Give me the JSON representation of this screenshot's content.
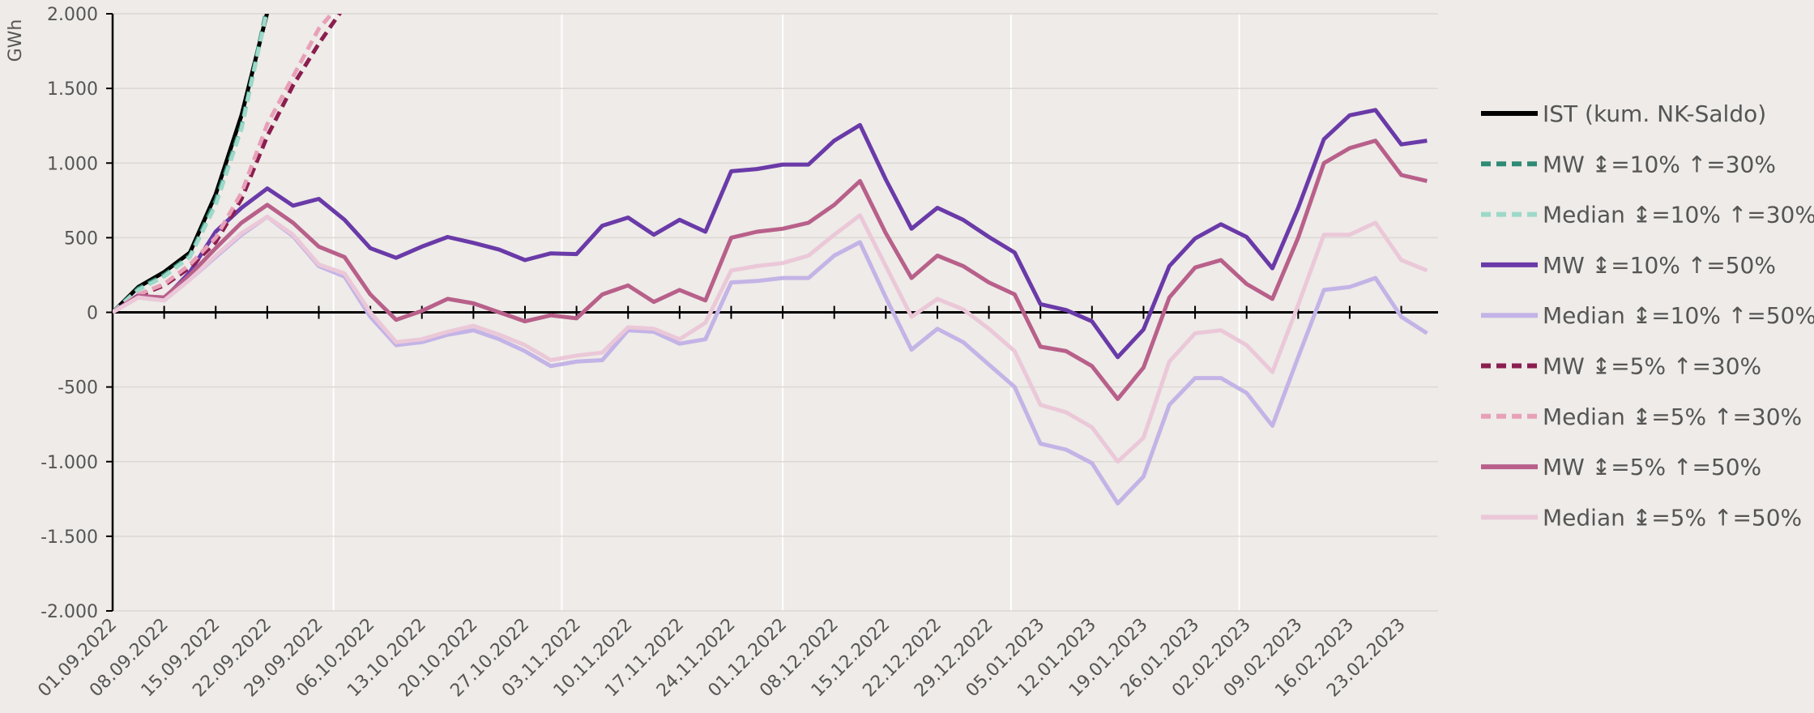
{
  "chart_data": {
    "type": "line",
    "y_label": "GWh",
    "categories": [
      "01.09.2022",
      null,
      "08.09.2022",
      null,
      "15.09.2022",
      null,
      "22.09.2022",
      null,
      "29.09.2022",
      null,
      "06.10.2022",
      null,
      "13.10.2022",
      null,
      "20.10.2022",
      null,
      "27.10.2022",
      null,
      "03.11.2022",
      null,
      "10.11.2022",
      null,
      "17.11.2022",
      null,
      "24.11.2022",
      null,
      "01.12.2022",
      null,
      "08.12.2022",
      null,
      "15.12.2022",
      null,
      "22.12.2022",
      null,
      "29.12.2022",
      null,
      "05.01.2023",
      null,
      "12.01.2023",
      null,
      "19.01.2023",
      null,
      "26.01.2023",
      null,
      "02.02.2023",
      null,
      "09.02.2023",
      null,
      "16.02.2023",
      null,
      "23.02.2023",
      null
    ],
    "ylim": [
      -2000,
      2000
    ],
    "yticks": [
      {
        "value": 2000,
        "label": "2.000"
      },
      {
        "value": 1500,
        "label": "1.500"
      },
      {
        "value": 1000,
        "label": "1.000"
      },
      500,
      0,
      -500,
      {
        "value": -1000,
        "label": "-1.000"
      },
      {
        "value": -1500,
        "label": "-1.500"
      },
      {
        "value": -2000,
        "label": "-2.000"
      }
    ],
    "grid": true,
    "legend": "right",
    "series": [
      {
        "name": "IST (kum. NK-Saldo)",
        "color": "#000000",
        "dashed": false,
        "values": [
          0,
          170,
          270,
          400,
          790,
          1320,
          2010,
          null,
          null,
          null,
          null,
          null,
          null,
          null,
          null,
          null,
          null,
          null,
          null,
          null,
          null,
          null,
          null,
          null,
          null,
          null,
          null,
          null,
          null,
          null,
          null,
          null,
          null,
          null,
          null,
          null,
          null,
          null,
          null,
          null,
          null,
          null,
          null,
          null,
          null,
          null,
          null,
          null,
          null,
          null,
          null,
          null
        ]
      },
      {
        "name": "MW ↨=10% ↑=30%",
        "color": "#2e8b74",
        "dashed": true,
        "values": [
          0,
          160,
          250,
          380,
          750,
          1250,
          2050,
          null,
          null,
          null,
          null,
          null,
          null,
          null,
          null,
          null,
          null,
          null,
          null,
          null,
          null,
          null,
          null,
          null,
          null,
          null,
          null,
          null,
          null,
          null,
          null,
          null,
          null,
          null,
          null,
          null,
          null,
          null,
          null,
          null,
          null,
          null,
          null,
          null,
          null,
          null,
          null,
          null,
          null,
          null,
          null,
          null
        ]
      },
      {
        "name": "Median ↨=10% ↑=30%",
        "color": "#9ed8c8",
        "dashed": true,
        "values": [
          0,
          150,
          240,
          370,
          720,
          1230,
          2030,
          null,
          null,
          null,
          null,
          null,
          null,
          null,
          null,
          null,
          null,
          null,
          null,
          null,
          null,
          null,
          null,
          null,
          null,
          null,
          null,
          null,
          null,
          null,
          null,
          null,
          null,
          null,
          null,
          null,
          null,
          null,
          null,
          null,
          null,
          null,
          null,
          null,
          null,
          null,
          null,
          null,
          null,
          null,
          null,
          null
        ]
      },
      {
        "name": "MW ↨=10% ↑=50%",
        "color": "#6a3aa8",
        "dashed": false,
        "values": [
          0,
          115,
          90,
          270,
          540,
          700,
          830,
          715,
          760,
          620,
          430,
          365,
          440,
          505,
          465,
          420,
          350,
          395,
          390,
          580,
          635,
          520,
          620,
          540,
          945,
          960,
          990,
          990,
          1150,
          1255,
          890,
          560,
          700,
          620,
          505,
          400,
          55,
          15,
          -60,
          -300,
          -115,
          310,
          495,
          590,
          505,
          295,
          700,
          1160,
          1320,
          1355,
          1125,
          1150
        ]
      },
      {
        "name": "Median ↨=10% ↑=50%",
        "color": "#c3b3e6",
        "dashed": false,
        "values": [
          0,
          100,
          80,
          220,
          370,
          520,
          640,
          510,
          310,
          240,
          -30,
          -220,
          -200,
          -150,
          -120,
          -180,
          -260,
          -360,
          -330,
          -320,
          -120,
          -130,
          -210,
          -180,
          200,
          210,
          230,
          230,
          380,
          470,
          100,
          -250,
          -110,
          -200,
          -350,
          -500,
          -880,
          -920,
          -1010,
          -1280,
          -1100,
          -620,
          -440,
          -440,
          -540,
          -760,
          -300,
          150,
          170,
          230,
          -30,
          -140
        ]
      },
      {
        "name": "MW ↨=5% ↑=30%",
        "color": "#8b1e4f",
        "dashed": true,
        "values": [
          0,
          110,
          180,
          300,
          470,
          760,
          1180,
          1520,
          1800,
          2050,
          null,
          null,
          null,
          null,
          null,
          null,
          null,
          null,
          null,
          null,
          null,
          null,
          null,
          null,
          null,
          null,
          null,
          null,
          null,
          null,
          null,
          null,
          null,
          null,
          null,
          null,
          null,
          null,
          null,
          null,
          null,
          null,
          null,
          null,
          null,
          null,
          null,
          null,
          null,
          null,
          null,
          null
        ]
      },
      {
        "name": "Median ↨=5% ↑=30%",
        "color": "#e8a0b8",
        "dashed": true,
        "values": [
          0,
          120,
          190,
          320,
          500,
          800,
          1260,
          1580,
          1900,
          2100,
          null,
          null,
          null,
          null,
          null,
          null,
          null,
          null,
          null,
          null,
          null,
          null,
          null,
          null,
          null,
          null,
          null,
          null,
          null,
          null,
          null,
          null,
          null,
          null,
          null,
          null,
          null,
          null,
          null,
          null,
          null,
          null,
          null,
          null,
          null,
          null,
          null,
          null,
          null,
          null,
          null,
          null
        ]
      },
      {
        "name": "MW ↨=5% ↑=50%",
        "color": "#b8608a",
        "dashed": false,
        "values": [
          0,
          110,
          100,
          250,
          430,
          600,
          720,
          600,
          440,
          370,
          120,
          -50,
          10,
          90,
          60,
          0,
          -60,
          -20,
          -40,
          120,
          180,
          70,
          150,
          80,
          500,
          540,
          560,
          600,
          720,
          880,
          530,
          230,
          380,
          310,
          200,
          120,
          -230,
          -260,
          -360,
          -580,
          -370,
          100,
          300,
          350,
          190,
          90,
          500,
          1000,
          1100,
          1150,
          920,
          880
        ]
      },
      {
        "name": "Median ↨=5% ↑=50%",
        "color": "#ebc8d8",
        "dashed": false,
        "values": [
          0,
          100,
          80,
          220,
          380,
          530,
          640,
          520,
          320,
          260,
          0,
          -200,
          -180,
          -130,
          -90,
          -150,
          -220,
          -320,
          -290,
          -270,
          -100,
          -110,
          -180,
          -70,
          280,
          310,
          330,
          380,
          520,
          650,
          310,
          -30,
          90,
          20,
          -110,
          -260,
          -620,
          -670,
          -770,
          -1000,
          -840,
          -330,
          -140,
          -120,
          -220,
          -400,
          50,
          520,
          520,
          600,
          350,
          280
        ]
      }
    ]
  }
}
